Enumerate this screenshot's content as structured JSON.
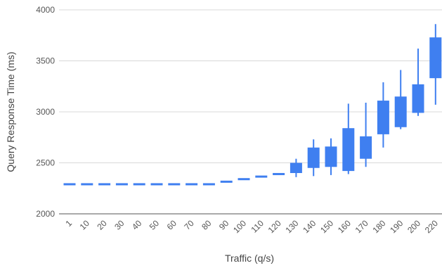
{
  "chart_data": {
    "type": "candlestick",
    "xlabel": "Traffic (q/s)",
    "ylabel": "Query Response Time (ms)",
    "ylim": [
      2000,
      4000
    ],
    "yticks": [
      2000,
      2500,
      3000,
      3500,
      4000
    ],
    "grid": true,
    "color": "#3f7ff0",
    "categories": [
      "1",
      "10",
      "20",
      "30",
      "40",
      "50",
      "60",
      "70",
      "80",
      "90",
      "100",
      "110",
      "120",
      "130",
      "140",
      "150",
      "160",
      "170",
      "180",
      "190",
      "200",
      "220"
    ],
    "series": [
      {
        "values": [
          {
            "low": 2290,
            "open": 2290,
            "close": 2290,
            "high": 2290
          },
          {
            "low": 2290,
            "open": 2290,
            "close": 2290,
            "high": 2290
          },
          {
            "low": 2290,
            "open": 2290,
            "close": 2290,
            "high": 2290
          },
          {
            "low": 2290,
            "open": 2290,
            "close": 2290,
            "high": 2290
          },
          {
            "low": 2290,
            "open": 2290,
            "close": 2290,
            "high": 2290
          },
          {
            "low": 2290,
            "open": 2290,
            "close": 2290,
            "high": 2290
          },
          {
            "low": 2290,
            "open": 2290,
            "close": 2290,
            "high": 2290
          },
          {
            "low": 2290,
            "open": 2290,
            "close": 2290,
            "high": 2290
          },
          {
            "low": 2290,
            "open": 2290,
            "close": 2290,
            "high": 2290
          },
          {
            "low": 2315,
            "open": 2315,
            "close": 2315,
            "high": 2315
          },
          {
            "low": 2340,
            "open": 2340,
            "close": 2340,
            "high": 2340
          },
          {
            "low": 2365,
            "open": 2365,
            "close": 2365,
            "high": 2365
          },
          {
            "low": 2390,
            "open": 2390,
            "close": 2390,
            "high": 2390
          },
          {
            "low": 2360,
            "open": 2400,
            "close": 2500,
            "high": 2540
          },
          {
            "low": 2370,
            "open": 2450,
            "close": 2650,
            "high": 2730
          },
          {
            "low": 2380,
            "open": 2460,
            "close": 2660,
            "high": 2740
          },
          {
            "low": 2390,
            "open": 2420,
            "close": 2840,
            "high": 3080
          },
          {
            "low": 2460,
            "open": 2540,
            "close": 2760,
            "high": 3090
          },
          {
            "low": 2650,
            "open": 2780,
            "close": 3110,
            "high": 3290
          },
          {
            "low": 2830,
            "open": 2850,
            "close": 3150,
            "high": 3410
          },
          {
            "low": 2960,
            "open": 2990,
            "close": 3270,
            "high": 3620
          },
          {
            "low": 3070,
            "open": 3330,
            "close": 3730,
            "high": 3860
          }
        ]
      }
    ]
  }
}
